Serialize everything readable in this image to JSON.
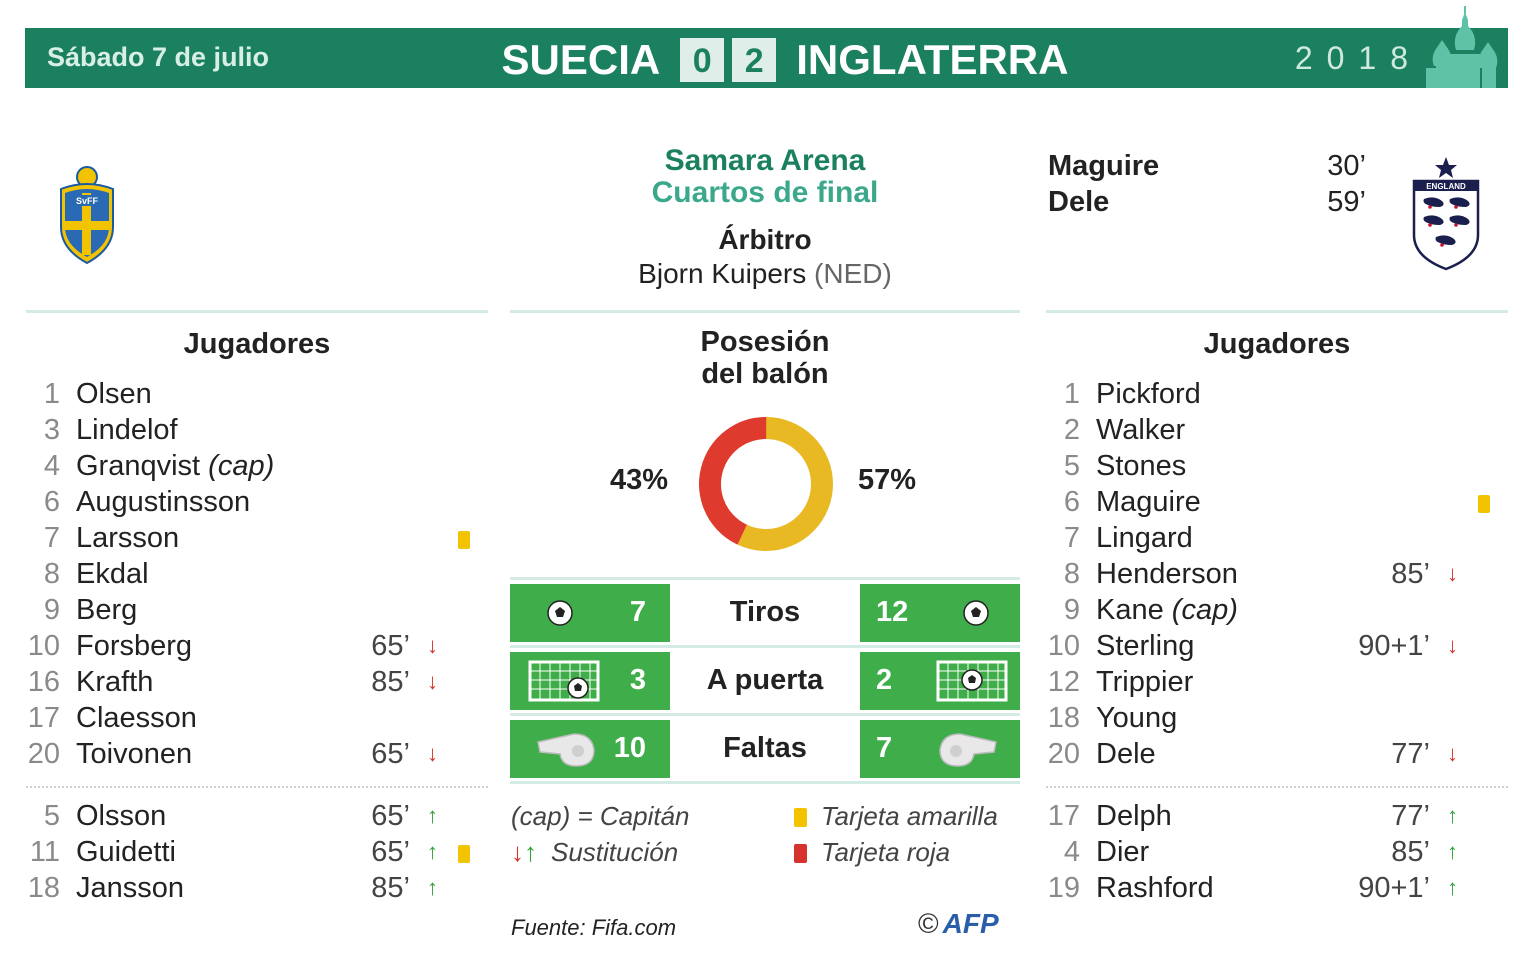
{
  "header": {
    "date": "Sábado 7 de julio",
    "team_home": "SUECIA",
    "score_home": "0",
    "score_away": "2",
    "team_away": "INGLATERRA",
    "year": "2018"
  },
  "crests": {
    "home_text": "SvFF",
    "away_text": "ENGLAND"
  },
  "venue": {
    "stadium": "Samara Arena",
    "stage": "Cuartos de final",
    "referee_title": "Árbitro",
    "referee_name": "Bjorn Kuipers",
    "referee_country": "(NED)"
  },
  "scorers": [
    {
      "name": "Maguire",
      "minute": "30’"
    },
    {
      "name": "Dele",
      "minute": "59’"
    }
  ],
  "home_players": {
    "title": "Jugadores",
    "starters": [
      {
        "num": "1",
        "name": "Olsen",
        "cap": "",
        "min": "",
        "arrow": "",
        "card": ""
      },
      {
        "num": "3",
        "name": "Lindelof",
        "cap": "",
        "min": "",
        "arrow": "",
        "card": ""
      },
      {
        "num": "4",
        "name": "Granqvist",
        "cap": "(cap)",
        "min": "",
        "arrow": "",
        "card": ""
      },
      {
        "num": "6",
        "name": "Augustinsson",
        "cap": "",
        "min": "",
        "arrow": "",
        "card": ""
      },
      {
        "num": "7",
        "name": "Larsson",
        "cap": "",
        "min": "",
        "arrow": "",
        "card": "yellow"
      },
      {
        "num": "8",
        "name": "Ekdal",
        "cap": "",
        "min": "",
        "arrow": "",
        "card": ""
      },
      {
        "num": "9",
        "name": "Berg",
        "cap": "",
        "min": "",
        "arrow": "",
        "card": ""
      },
      {
        "num": "10",
        "name": "Forsberg",
        "cap": "",
        "min": "65’",
        "arrow": "down",
        "card": ""
      },
      {
        "num": "16",
        "name": "Krafth",
        "cap": "",
        "min": "85’",
        "arrow": "down",
        "card": ""
      },
      {
        "num": "17",
        "name": "Claesson",
        "cap": "",
        "min": "",
        "arrow": "",
        "card": ""
      },
      {
        "num": "20",
        "name": "Toivonen",
        "cap": "",
        "min": "65’",
        "arrow": "down",
        "card": ""
      }
    ],
    "subs": [
      {
        "num": "5",
        "name": "Olsson",
        "cap": "",
        "min": "65’",
        "arrow": "up",
        "card": ""
      },
      {
        "num": "11",
        "name": "Guidetti",
        "cap": "",
        "min": "65’",
        "arrow": "up",
        "card": "yellow"
      },
      {
        "num": "18",
        "name": "Jansson",
        "cap": "",
        "min": "85’",
        "arrow": "up",
        "card": ""
      }
    ]
  },
  "away_players": {
    "title": "Jugadores",
    "starters": [
      {
        "num": "1",
        "name": "Pickford",
        "cap": "",
        "min": "",
        "arrow": "",
        "card": ""
      },
      {
        "num": "2",
        "name": "Walker",
        "cap": "",
        "min": "",
        "arrow": "",
        "card": ""
      },
      {
        "num": "5",
        "name": "Stones",
        "cap": "",
        "min": "",
        "arrow": "",
        "card": ""
      },
      {
        "num": "6",
        "name": "Maguire",
        "cap": "",
        "min": "",
        "arrow": "",
        "card": "yellow"
      },
      {
        "num": "7",
        "name": "Lingard",
        "cap": "",
        "min": "",
        "arrow": "",
        "card": ""
      },
      {
        "num": "8",
        "name": "Henderson",
        "cap": "",
        "min": "85’",
        "arrow": "down",
        "card": ""
      },
      {
        "num": "9",
        "name": "Kane",
        "cap": "(cap)",
        "min": "",
        "arrow": "",
        "card": ""
      },
      {
        "num": "10",
        "name": "Sterling",
        "cap": "",
        "min": "90+1’",
        "arrow": "down",
        "card": ""
      },
      {
        "num": "12",
        "name": "Trippier",
        "cap": "",
        "min": "",
        "arrow": "",
        "card": ""
      },
      {
        "num": "18",
        "name": "Young",
        "cap": "",
        "min": "",
        "arrow": "",
        "card": ""
      },
      {
        "num": "20",
        "name": "Dele",
        "cap": "",
        "min": "77’",
        "arrow": "down",
        "card": ""
      }
    ],
    "subs": [
      {
        "num": "17",
        "name": "Delph",
        "cap": "",
        "min": "77’",
        "arrow": "up",
        "card": ""
      },
      {
        "num": "4",
        "name": "Dier",
        "cap": "",
        "min": "85’",
        "arrow": "up",
        "card": ""
      },
      {
        "num": "19",
        "name": "Rashford",
        "cap": "",
        "min": "90+1’",
        "arrow": "up",
        "card": ""
      }
    ]
  },
  "possession": {
    "title_line1": "Posesión",
    "title_line2": "del balón",
    "home_label": "43%",
    "away_label": "57%",
    "home_value": 43,
    "away_value": 57,
    "home_color": "#de3a2e",
    "away_color": "#e8b922"
  },
  "stats": [
    {
      "label": "Tiros",
      "home": "7",
      "away": "12",
      "icon": "ball-icon"
    },
    {
      "label": "A puerta",
      "home": "3",
      "away": "2",
      "icon": "goal-icon"
    },
    {
      "label": "Faltas",
      "home": "10",
      "away": "7",
      "icon": "whistle-icon"
    }
  ],
  "legend": {
    "cap": "(cap) = Capitán",
    "sub": "Sustitución",
    "yellow": "Tarjeta amarilla",
    "red": "Tarjeta roja"
  },
  "footer": {
    "source": "Fuente: Fifa.com",
    "copyright": "©",
    "brand": "AFP"
  },
  "colors": {
    "header_bg": "#1b8060",
    "stat_green": "#3fae4a",
    "yellow_card": "#f2c300",
    "red_card": "#d6322e",
    "arrow_down": "#d6322e",
    "arrow_up": "#2fa13a"
  }
}
